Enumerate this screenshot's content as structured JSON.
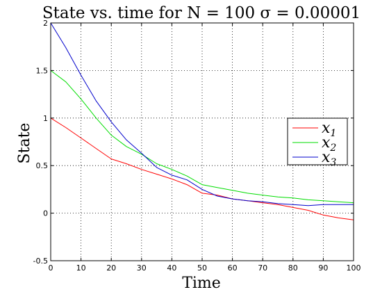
{
  "chart_data": {
    "type": "line",
    "title": "State vs.  time for N = 100 σ = 0.00001",
    "xlabel": "Time",
    "ylabel": "State",
    "xlim": [
      0,
      100
    ],
    "ylim": [
      -0.5,
      2
    ],
    "xticks": [
      "0",
      "10",
      "20",
      "30",
      "40",
      "50",
      "60",
      "70",
      "80",
      "90",
      "100"
    ],
    "yticks": [
      "-0.5",
      "0",
      "0.5",
      "1",
      "1.5",
      "2"
    ],
    "grid": true,
    "legend_position": "right",
    "x": [
      0,
      5,
      10,
      15,
      20,
      25,
      30,
      35,
      40,
      45,
      50,
      55,
      60,
      65,
      70,
      75,
      80,
      85,
      90,
      95,
      100
    ],
    "series": [
      {
        "name": "x1",
        "legend_main": "x",
        "legend_sub": "1",
        "color": "#ff0000",
        "values": [
          1.0,
          0.9,
          0.79,
          0.68,
          0.57,
          0.52,
          0.46,
          0.41,
          0.36,
          0.3,
          0.21,
          0.19,
          0.15,
          0.13,
          0.11,
          0.09,
          0.06,
          0.03,
          -0.02,
          -0.05,
          -0.07
        ]
      },
      {
        "name": "x2",
        "legend_main": "x",
        "legend_sub": "2",
        "color": "#00dd00",
        "values": [
          1.5,
          1.38,
          1.2,
          1.0,
          0.82,
          0.7,
          0.62,
          0.52,
          0.46,
          0.39,
          0.3,
          0.27,
          0.24,
          0.21,
          0.19,
          0.17,
          0.16,
          0.14,
          0.13,
          0.12,
          0.11
        ]
      },
      {
        "name": "x3",
        "legend_main": "x",
        "legend_sub": "3",
        "color": "#0000cc",
        "values": [
          2.0,
          1.74,
          1.45,
          1.18,
          0.96,
          0.77,
          0.63,
          0.48,
          0.4,
          0.35,
          0.25,
          0.18,
          0.15,
          0.13,
          0.12,
          0.1,
          0.09,
          0.08,
          0.09,
          0.09,
          0.09
        ]
      }
    ]
  }
}
